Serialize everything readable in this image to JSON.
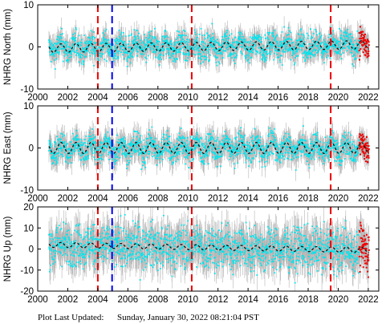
{
  "chart_data": [
    {
      "type": "scatter",
      "ylabel": "NHRG North (mm)",
      "xlim": [
        2000,
        2022.7
      ],
      "ylim": [
        -10,
        10
      ],
      "xticks": [
        2000,
        2002,
        2004,
        2006,
        2008,
        2010,
        2012,
        2014,
        2016,
        2018,
        2020,
        2022
      ],
      "yticks": [
        -10,
        0,
        10
      ],
      "show_xtick_labels": true,
      "data_start": 2000.75,
      "data_end": 2022.05,
      "noise_amplitude": 1.6,
      "error_bar": 2.2,
      "series": [
        {
          "name": "",
          "color": "#00e5ee",
          "role": "daily position"
        },
        {
          "name": "",
          "color": "#111111",
          "role": "model fit",
          "offset": -0.3,
          "trend_total": 0.8,
          "seasonal_amplitude": 1.0
        },
        {
          "name": "",
          "color": "#ee0000",
          "role": "recent rapid solutions",
          "start": 2021.4
        }
      ],
      "events": [
        {
          "x": 2004.0,
          "color": "#ee0000"
        },
        {
          "x": 2004.95,
          "color": "#0000ee"
        },
        {
          "x": 2010.25,
          "color": "#ee0000"
        },
        {
          "x": 2019.5,
          "color": "#ee0000"
        }
      ]
    },
    {
      "type": "scatter",
      "ylabel": "NHRG East (mm)",
      "xlim": [
        2000,
        2022.7
      ],
      "ylim": [
        -10,
        10
      ],
      "xticks": [
        2000,
        2002,
        2004,
        2006,
        2008,
        2010,
        2012,
        2014,
        2016,
        2018,
        2020,
        2022
      ],
      "yticks": [
        -10,
        0,
        10
      ],
      "show_xtick_labels": true,
      "data_start": 2000.75,
      "data_end": 2022.05,
      "noise_amplitude": 1.6,
      "error_bar": 2.4,
      "series": [
        {
          "name": "",
          "color": "#00e5ee",
          "role": "daily position"
        },
        {
          "name": "",
          "color": "#111111",
          "role": "model fit",
          "offset": 0.0,
          "trend_total": 0.0,
          "seasonal_amplitude": 1.3
        },
        {
          "name": "",
          "color": "#ee0000",
          "role": "recent rapid solutions",
          "start": 2021.4
        }
      ],
      "events": [
        {
          "x": 2004.0,
          "color": "#ee0000"
        },
        {
          "x": 2004.95,
          "color": "#0000ee"
        },
        {
          "x": 2010.25,
          "color": "#ee0000"
        },
        {
          "x": 2019.5,
          "color": "#ee0000"
        }
      ]
    },
    {
      "type": "scatter",
      "ylabel": "NHRG Up (mm)",
      "xlim": [
        2000,
        2022.7
      ],
      "ylim": [
        -20,
        20
      ],
      "xticks": [
        2000,
        2002,
        2004,
        2006,
        2008,
        2010,
        2012,
        2014,
        2016,
        2018,
        2020,
        2022
      ],
      "yticks": [
        -20,
        -10,
        0,
        10,
        20
      ],
      "show_xtick_labels": true,
      "data_start": 2000.75,
      "data_end": 2022.05,
      "noise_amplitude": 5.0,
      "error_bar": 7.0,
      "series": [
        {
          "name": "",
          "color": "#00e5ee",
          "role": "daily position"
        },
        {
          "name": "",
          "color": "#111111",
          "role": "model fit",
          "offset": 2.0,
          "trend_total": -2.5,
          "seasonal_amplitude": 1.2
        },
        {
          "name": "",
          "color": "#ee0000",
          "role": "recent rapid solutions",
          "start": 2021.4
        }
      ],
      "events": [
        {
          "x": 2004.0,
          "color": "#ee0000"
        },
        {
          "x": 2004.95,
          "color": "#0000ee"
        },
        {
          "x": 2010.25,
          "color": "#ee0000"
        },
        {
          "x": 2019.5,
          "color": "#ee0000"
        }
      ]
    }
  ],
  "footer": {
    "label": "Plot Last Updated:",
    "timestamp": "Sunday, January 30, 2022 08:21:04 PST"
  },
  "colors": {
    "error_bar": "#b5b5b5",
    "frame": "#000000"
  }
}
